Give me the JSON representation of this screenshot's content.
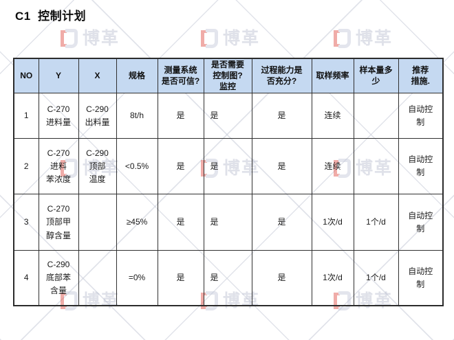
{
  "page": {
    "title": "C1  控制计划"
  },
  "watermark": {
    "brand_text": "博革"
  },
  "table": {
    "columns": [
      {
        "label": "NO"
      },
      {
        "label": "Y"
      },
      {
        "label": "X"
      },
      {
        "label": "规格"
      },
      {
        "label": "测量系统\n是否可信?"
      },
      {
        "label": "是否需要\n控制图?\n监控"
      },
      {
        "label": "过程能力是\n否充分?"
      },
      {
        "label": "取样频率"
      },
      {
        "label": "样本量多\n少"
      },
      {
        "label": "推荐\n措施."
      }
    ],
    "rows": [
      {
        "cells": [
          "1",
          "C-270\n进料量",
          "C-290\n出料量",
          "8t/h",
          "是",
          "是",
          "是",
          "连续",
          "",
          "自动控\n制"
        ]
      },
      {
        "cells": [
          "2",
          "C-270\n进料\n苯浓度",
          "C-290\n顶部\n温度",
          "<0.5%",
          "是",
          "是",
          "是",
          "连续",
          "",
          "自动控\n制"
        ]
      },
      {
        "cells": [
          "3",
          "C-270\n顶部甲\n醇含量",
          "",
          "≥45%",
          "是",
          "是",
          "是",
          "1次/d",
          "1个/d",
          "自动控\n制"
        ]
      },
      {
        "cells": [
          "4",
          "C-290\n底部苯\n含量",
          "",
          "=0%",
          "是",
          "是",
          "是",
          "1次/d",
          "1个/d",
          "自动控\n制"
        ]
      }
    ]
  }
}
